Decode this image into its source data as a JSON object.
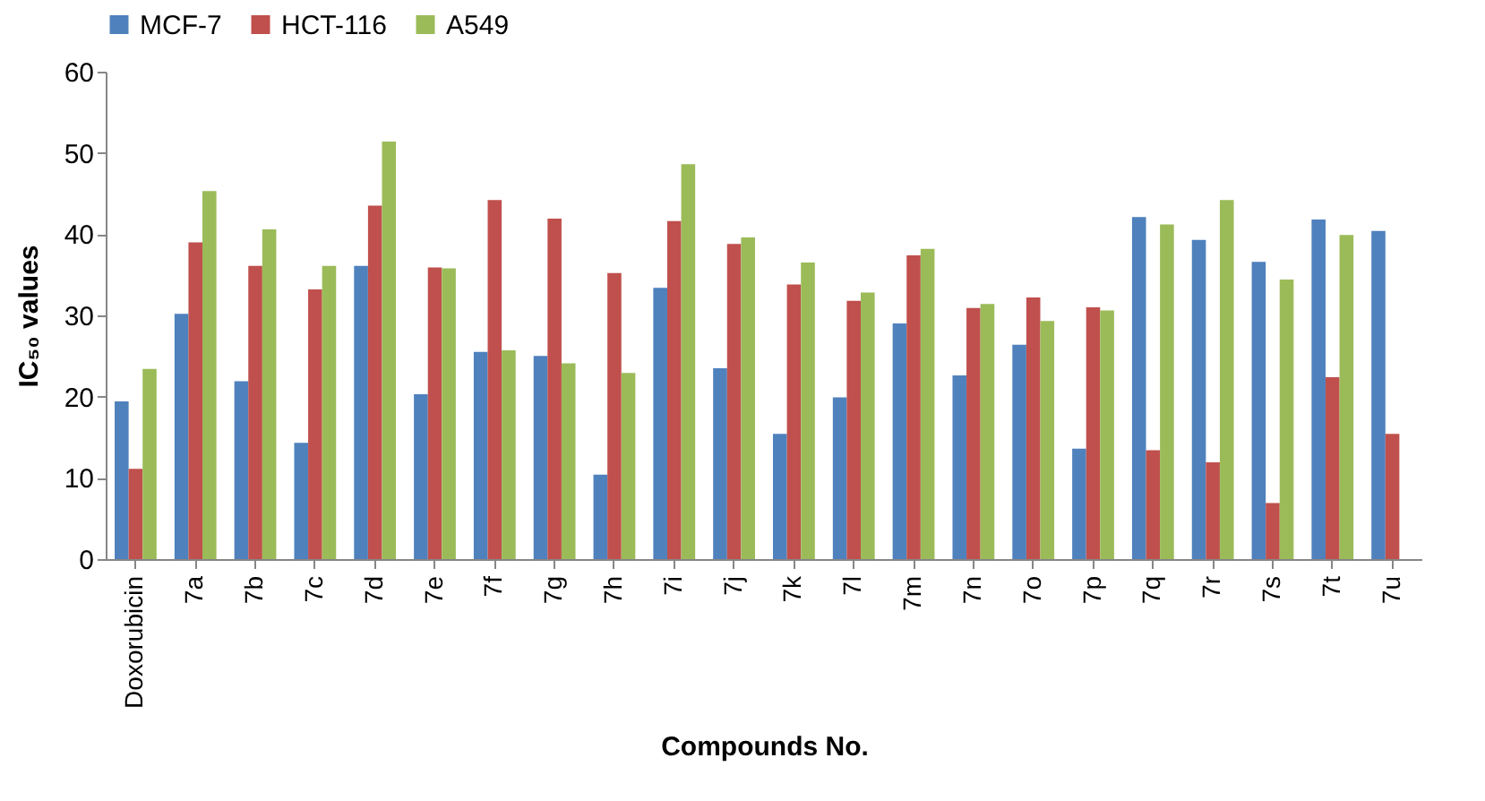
{
  "chart_data": {
    "type": "bar",
    "xlabel": "Compounds No.",
    "ylabel": "IC₅₀ values",
    "categories": [
      "Doxorubicin",
      "7a",
      "7b",
      "7c",
      "7d",
      "7e",
      "7f",
      "7g",
      "7h",
      "7i",
      "7j",
      "7k",
      "7l",
      "7m",
      "7n",
      "7o",
      "7p",
      "7q",
      "7r",
      "7s",
      "7t",
      "7u"
    ],
    "series": [
      {
        "name": "MCF-7",
        "color": "#4f81bd",
        "values": [
          19.4,
          30.2,
          21.9,
          14.3,
          36.1,
          20.3,
          25.5,
          25.0,
          10.4,
          33.4,
          23.5,
          15.4,
          19.9,
          29.0,
          22.6,
          26.4,
          13.6,
          42.1,
          39.3,
          36.6,
          41.8,
          40.4
        ]
      },
      {
        "name": "HCT-116",
        "color": "#c0504d",
        "values": [
          11.1,
          39.0,
          36.1,
          33.2,
          43.5,
          35.9,
          44.2,
          41.9,
          35.2,
          41.6,
          38.8,
          33.8,
          31.8,
          37.4,
          30.9,
          32.2,
          31.0,
          13.4,
          11.9,
          6.9,
          22.4,
          15.4
        ]
      },
      {
        "name": "A549",
        "color": "#9bbb59",
        "values": [
          23.4,
          45.3,
          40.6,
          36.1,
          51.4,
          35.8,
          25.7,
          24.1,
          22.9,
          48.6,
          39.6,
          36.5,
          32.8,
          38.2,
          31.4,
          29.3,
          30.6,
          41.2,
          44.2,
          34.4,
          39.9,
          null
        ]
      }
    ],
    "ylim": [
      0,
      60
    ],
    "yticks": [
      0,
      10,
      20,
      30,
      40,
      50,
      60
    ],
    "legend": "top"
  }
}
